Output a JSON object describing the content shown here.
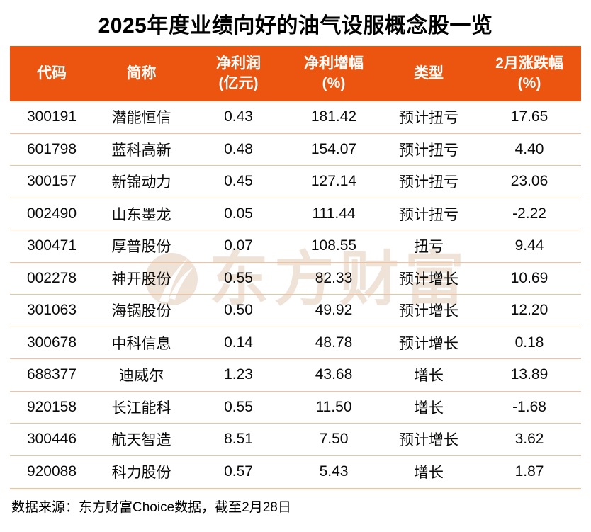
{
  "title": "2025年度业绩向好的油气设服概念股一览",
  "chart_data": {
    "type": "table",
    "title": "2025年度业绩向好的油气设服概念股一览",
    "columns": [
      {
        "key": "code",
        "label": "代码",
        "sub": ""
      },
      {
        "key": "name",
        "label": "简称",
        "sub": ""
      },
      {
        "key": "net-profit",
        "label": "净利润",
        "sub": "(亿元)"
      },
      {
        "key": "profit-growth",
        "label": "净利增幅",
        "sub": "(%)"
      },
      {
        "key": "type",
        "label": "类型",
        "sub": ""
      },
      {
        "key": "feb-change",
        "label": "2月涨跌幅",
        "sub": "(%)"
      }
    ],
    "rows": [
      [
        "300191",
        "潜能恒信",
        "0.43",
        "181.42",
        "预计扭亏",
        "17.65"
      ],
      [
        "601798",
        "蓝科高新",
        "0.48",
        "154.07",
        "预计扭亏",
        "4.40"
      ],
      [
        "300157",
        "新锦动力",
        "0.45",
        "127.14",
        "预计扭亏",
        "23.06"
      ],
      [
        "002490",
        "山东墨龙",
        "0.05",
        "111.44",
        "预计扭亏",
        "-2.22"
      ],
      [
        "300471",
        "厚普股份",
        "0.07",
        "108.55",
        "扭亏",
        "9.44"
      ],
      [
        "002278",
        "神开股份",
        "0.55",
        "82.33",
        "预计增长",
        "10.69"
      ],
      [
        "301063",
        "海锅股份",
        "0.50",
        "49.92",
        "预计增长",
        "12.20"
      ],
      [
        "300678",
        "中科信息",
        "0.14",
        "48.78",
        "预计增长",
        "0.18"
      ],
      [
        "688377",
        "迪威尔",
        "1.23",
        "43.68",
        "增长",
        "13.89"
      ],
      [
        "920158",
        "长江能科",
        "0.55",
        "11.50",
        "增长",
        "-1.68"
      ],
      [
        "300446",
        "航天智造",
        "8.51",
        "7.50",
        "预计增长",
        "3.62"
      ],
      [
        "920088",
        "科力股份",
        "0.57",
        "5.43",
        "增长",
        "1.87"
      ]
    ]
  },
  "watermark": {
    "text": "东方财富"
  },
  "footer": {
    "source_note": "数据来源：东方财富Choice数据，截至2月28日"
  },
  "colors": {
    "header_bg": "#EB550F",
    "divider": "#F3C19B",
    "title_text": "#000000",
    "header_text": "#FFFFFF",
    "body_text": "#0A0A0A",
    "watermark": "#EFE3D8"
  }
}
